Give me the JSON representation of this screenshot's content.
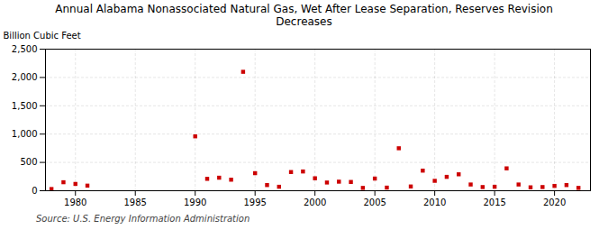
{
  "chart_data": {
    "type": "scatter",
    "title": "Annual Alabama Nonassociated Natural Gas, Wet After Lease Separation, Reserves Revision\nDecreases",
    "ylabel": "Billion Cubic Feet",
    "source": "Source: U.S. Energy Information Administration",
    "x": [
      1978,
      1979,
      1980,
      1981,
      1990,
      1991,
      1992,
      1993,
      1994,
      1995,
      1996,
      1997,
      1998,
      1999,
      2000,
      2001,
      2002,
      2003,
      2004,
      2005,
      2006,
      2007,
      2008,
      2009,
      2010,
      2011,
      2012,
      2013,
      2014,
      2015,
      2016,
      2017,
      2018,
      2019,
      2020,
      2021,
      2022
    ],
    "values": [
      30,
      150,
      120,
      90,
      960,
      210,
      230,
      195,
      2100,
      310,
      100,
      70,
      330,
      340,
      220,
      145,
      160,
      155,
      50,
      215,
      55,
      750,
      75,
      355,
      175,
      245,
      290,
      110,
      65,
      70,
      395,
      110,
      60,
      65,
      85,
      100,
      50
    ],
    "color": "#cc0000",
    "marker": "square",
    "xlim": [
      1977.5,
      2023
    ],
    "ylim": [
      0,
      2500
    ],
    "xticks": [
      1980,
      1985,
      1990,
      1995,
      2000,
      2005,
      2010,
      2015,
      2020
    ],
    "yticks": [
      0,
      500,
      {
        "value": 1000,
        "label": "1,000"
      },
      {
        "value": 1500,
        "label": "1,500"
      },
      {
        "value": 2000,
        "label": "2,000"
      },
      {
        "value": 2500,
        "label": "2,500"
      }
    ],
    "grid": true
  }
}
